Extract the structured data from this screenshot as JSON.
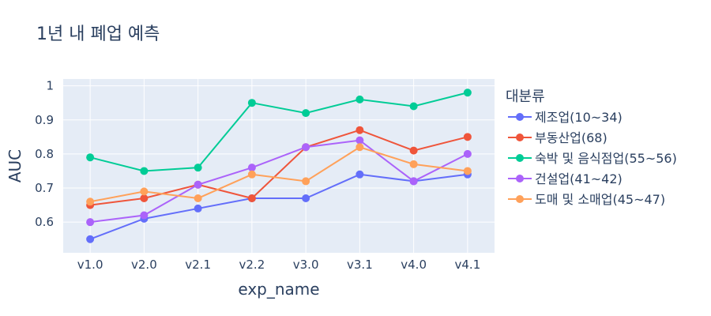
{
  "chart_data": {
    "type": "line",
    "title": "1년 내 폐업 예측",
    "xlabel": "exp_name",
    "ylabel": "AUC",
    "categories": [
      "v1.0",
      "v2.0",
      "v2.1",
      "v2.2",
      "v3.0",
      "v3.1",
      "v4.0",
      "v4.1"
    ],
    "ylim": [
      0.51,
      1.02
    ],
    "yticks": [
      0.6,
      0.7,
      0.8,
      0.9,
      1
    ],
    "ytick_labels": [
      "0.6",
      "0.7",
      "0.8",
      "0.9",
      "1"
    ],
    "grid": true,
    "legend_title": "대분류",
    "legend_position": "right",
    "series": [
      {
        "name": "제조업(10~34)",
        "color": "#636efa",
        "values": [
          0.55,
          0.61,
          0.64,
          0.67,
          0.67,
          0.74,
          0.72,
          0.74
        ]
      },
      {
        "name": "부동산업(68)",
        "color": "#ef553b",
        "values": [
          0.65,
          0.67,
          0.71,
          0.67,
          0.82,
          0.87,
          0.81,
          0.85
        ]
      },
      {
        "name": "숙박 및 음식점업(55~56)",
        "color": "#00cc96",
        "values": [
          0.79,
          0.75,
          0.76,
          0.95,
          0.92,
          0.96,
          0.94,
          0.98
        ]
      },
      {
        "name": "건설업(41~42)",
        "color": "#ab63fa",
        "values": [
          0.6,
          0.62,
          0.71,
          0.76,
          0.82,
          0.84,
          0.72,
          0.8
        ]
      },
      {
        "name": "도매 및 소매업(45~47)",
        "color": "#ffa15a",
        "values": [
          0.66,
          0.69,
          0.67,
          0.74,
          0.72,
          0.82,
          0.77,
          0.75
        ]
      }
    ]
  }
}
